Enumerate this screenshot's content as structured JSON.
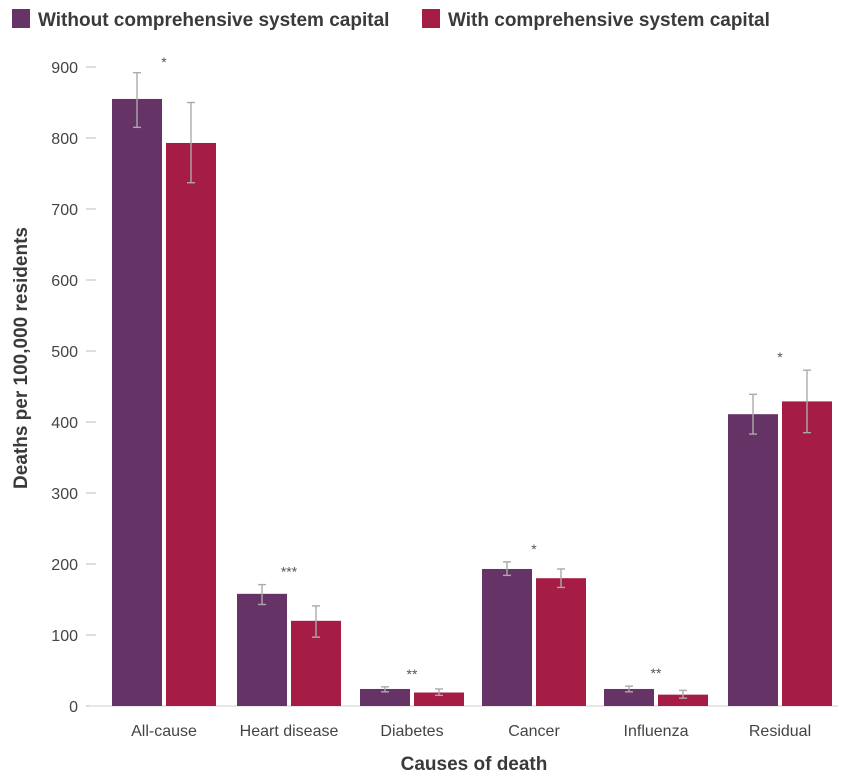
{
  "chart_data": {
    "type": "bar",
    "title": "",
    "xlabel": "Causes of death",
    "ylabel": "Deaths per 100,000 residents",
    "ylim": [
      0,
      900
    ],
    "yticks": [
      0,
      100,
      200,
      300,
      400,
      500,
      600,
      700,
      800,
      900
    ],
    "categories": [
      "All-cause",
      "Heart disease",
      "Diabetes",
      "Cancer",
      "Influenza",
      "Residual"
    ],
    "significance": [
      "*",
      "***",
      "**",
      "*",
      "**",
      "*"
    ],
    "legend_position": "top-left",
    "series": [
      {
        "name": "Without comprehensive system capital",
        "color": "#663366",
        "values": [
          855,
          158,
          24,
          193,
          24,
          411
        ],
        "error_low": [
          815,
          143,
          20,
          184,
          20,
          383
        ],
        "error_high": [
          892,
          171,
          27,
          203,
          28,
          439
        ]
      },
      {
        "name": "With comprehensive system capital",
        "color": "#a51c45",
        "values": [
          793,
          120,
          19,
          180,
          16,
          429
        ],
        "error_low": [
          737,
          97,
          15,
          167,
          11,
          385
        ],
        "error_high": [
          850,
          141,
          24,
          193,
          22,
          473
        ]
      }
    ]
  }
}
